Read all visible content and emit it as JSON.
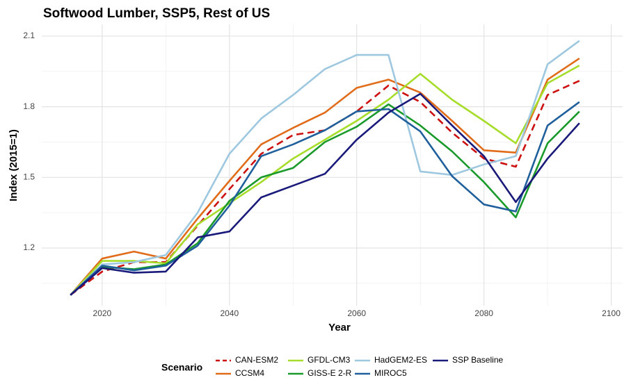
{
  "chart_data": {
    "type": "line",
    "title": "Softwood Lumber, SSP5, Rest of US",
    "x_label": "Year",
    "y_label": "Index (2015=1)",
    "x": [
      2015,
      2020,
      2025,
      2030,
      2035,
      2040,
      2045,
      2050,
      2055,
      2060,
      2065,
      2070,
      2075,
      2080,
      2085,
      2090,
      2095
    ],
    "xlim": [
      2010.5,
      2101.8
    ],
    "xticks": [
      2020,
      2040,
      2060,
      2080,
      2100
    ],
    "xminor": [
      2030,
      2050,
      2070,
      2090
    ],
    "ylim": [
      0.955,
      2.15
    ],
    "yticks": [
      {
        "value": 1.2,
        "label": "1.2"
      },
      {
        "value": 1.5,
        "label": "1.5"
      },
      {
        "value": 1.8,
        "label": "1.8"
      },
      {
        "value": 2.1,
        "label": "2.1"
      }
    ],
    "yminor": [
      1.05,
      1.35,
      1.65,
      1.95
    ],
    "grid": true,
    "legend": "bottom",
    "legend_title": "Scenario",
    "series": [
      {
        "name": "CAN-ESM2",
        "color": "#cc1111",
        "linetype": "dashed",
        "values": [
          1.0,
          1.1,
          1.14,
          1.14,
          1.295,
          1.45,
          1.6,
          1.68,
          1.7,
          1.78,
          1.89,
          1.82,
          1.69,
          1.58,
          1.545,
          1.85,
          1.91
        ]
      },
      {
        "name": "CCSM4",
        "color": "#e06c1a",
        "values": [
          1.0,
          1.155,
          1.185,
          1.155,
          1.325,
          1.485,
          1.64,
          1.71,
          1.775,
          1.88,
          1.915,
          1.86,
          1.74,
          1.615,
          1.605,
          1.915,
          2.005
        ]
      },
      {
        "name": "GFDL-CM3",
        "color": "#a6dd2a",
        "values": [
          1.0,
          1.145,
          1.145,
          1.135,
          1.3,
          1.39,
          1.48,
          1.58,
          1.66,
          1.74,
          1.83,
          1.94,
          1.83,
          1.74,
          1.645,
          1.9,
          1.975
        ]
      },
      {
        "name": "GISS-E 2-R",
        "color": "#1a9a2a",
        "values": [
          1.0,
          1.12,
          1.11,
          1.13,
          1.22,
          1.4,
          1.5,
          1.54,
          1.65,
          1.715,
          1.81,
          1.72,
          1.61,
          1.48,
          1.33,
          1.645,
          1.78
        ]
      },
      {
        "name": "HadGEM2-ES",
        "color": "#9ec8e0",
        "values": [
          1.0,
          1.13,
          1.14,
          1.17,
          1.35,
          1.6,
          1.75,
          1.85,
          1.96,
          2.02,
          2.02,
          1.525,
          1.51,
          1.555,
          1.59,
          1.98,
          2.08
        ]
      },
      {
        "name": "MIROC5",
        "color": "#1f5f9c",
        "values": [
          1.0,
          1.125,
          1.105,
          1.125,
          1.21,
          1.38,
          1.59,
          1.64,
          1.7,
          1.78,
          1.79,
          1.695,
          1.505,
          1.385,
          1.355,
          1.72,
          1.82
        ]
      },
      {
        "name": "SSP Baseline",
        "color": "#1a1a7a",
        "values": [
          1.0,
          1.115,
          1.095,
          1.1,
          1.245,
          1.27,
          1.415,
          1.465,
          1.515,
          1.66,
          1.775,
          1.855,
          1.72,
          1.59,
          1.395,
          1.58,
          1.73
        ]
      }
    ]
  }
}
